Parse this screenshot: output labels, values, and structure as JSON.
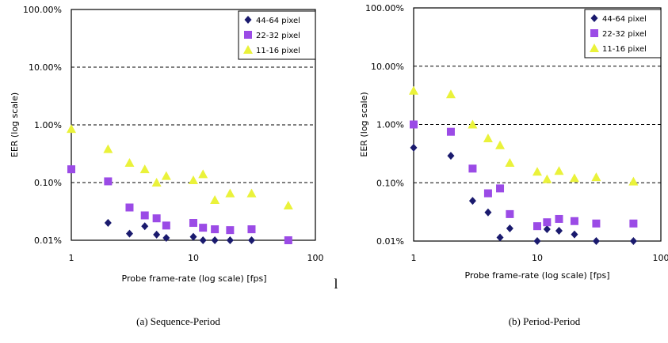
{
  "chart_data": [
    {
      "type": "scatter",
      "caption": "(a) Sequence-Period",
      "xlabel": "Probe frame-rate (log scale) [fps]",
      "ylabel": "EER (log scale)",
      "xscale": "log",
      "yscale": "log",
      "xlim": [
        1,
        100
      ],
      "ylim": [
        0.01,
        100
      ],
      "x_tick_labels": [
        "1",
        "10",
        "100"
      ],
      "y_tick_labels": [
        "0.01%",
        "0.10%",
        "1.00%",
        "10.00%",
        "100.00%"
      ],
      "grid": "horizontal dashed at 0.1, 1, 10",
      "legend_position": "top-right",
      "series": [
        {
          "name": "44-64 pixel",
          "marker": "diamond",
          "color": "#1a1a6e",
          "points": [
            [
              2,
              0.02
            ],
            [
              3,
              0.013
            ],
            [
              4,
              0.0175
            ],
            [
              5,
              0.0125
            ],
            [
              6,
              0.011
            ],
            [
              10,
              0.0115
            ],
            [
              12,
              0.01
            ],
            [
              15,
              0.01
            ],
            [
              20,
              0.01
            ],
            [
              30,
              0.01
            ]
          ]
        },
        {
          "name": "22-32 pixel",
          "marker": "square",
          "color": "#9b4be6",
          "points": [
            [
              1,
              0.17
            ],
            [
              2,
              0.105
            ],
            [
              3,
              0.037
            ],
            [
              4,
              0.027
            ],
            [
              5,
              0.024
            ],
            [
              6,
              0.018
            ],
            [
              10,
              0.02
            ],
            [
              12,
              0.0165
            ],
            [
              15,
              0.0155
            ],
            [
              20,
              0.015
            ],
            [
              30,
              0.0155
            ],
            [
              60,
              0.01
            ]
          ]
        },
        {
          "name": "11-16 pixel",
          "marker": "triangle",
          "color": "#eaf23a",
          "points": [
            [
              1,
              0.85
            ],
            [
              2,
              0.38
            ],
            [
              3,
              0.22
            ],
            [
              4,
              0.17
            ],
            [
              5,
              0.1
            ],
            [
              6,
              0.13
            ],
            [
              10,
              0.11
            ],
            [
              12,
              0.14
            ],
            [
              15,
              0.05
            ],
            [
              20,
              0.065
            ],
            [
              30,
              0.065
            ],
            [
              60,
              0.04
            ]
          ]
        }
      ]
    },
    {
      "type": "scatter",
      "caption": "(b) Period-Period",
      "xlabel": "Probe frame-rate (log scale) [fps]",
      "ylabel": "EER (log scale)",
      "xscale": "log",
      "yscale": "log",
      "xlim": [
        1,
        100
      ],
      "ylim": [
        0.01,
        100
      ],
      "x_tick_labels": [
        "1",
        "10",
        "100"
      ],
      "y_tick_labels": [
        "0.01%",
        "0.10%",
        "1.00%",
        "10.00%",
        "100.00%"
      ],
      "grid": "horizontal dashed at 0.1, 1, 10",
      "legend_position": "top-right",
      "series": [
        {
          "name": "44-64 pixel",
          "marker": "diamond",
          "color": "#1a1a6e",
          "points": [
            [
              1,
              0.4
            ],
            [
              2,
              0.29
            ],
            [
              3,
              0.049
            ],
            [
              4,
              0.031
            ],
            [
              5,
              0.0115
            ],
            [
              6,
              0.0165
            ],
            [
              10,
              0.01
            ],
            [
              12,
              0.016
            ],
            [
              15,
              0.015
            ],
            [
              20,
              0.013
            ],
            [
              30,
              0.01
            ],
            [
              60,
              0.01
            ]
          ]
        },
        {
          "name": "22-32 pixel",
          "marker": "square",
          "color": "#9b4be6",
          "points": [
            [
              1,
              1.0
            ],
            [
              2,
              0.75
            ],
            [
              3,
              0.175
            ],
            [
              4,
              0.066
            ],
            [
              5,
              0.08
            ],
            [
              6,
              0.029
            ],
            [
              10,
              0.018
            ],
            [
              12,
              0.021
            ],
            [
              15,
              0.024
            ],
            [
              20,
              0.022
            ],
            [
              30,
              0.02
            ],
            [
              60,
              0.02
            ]
          ]
        },
        {
          "name": "11-16 pixel",
          "marker": "triangle",
          "color": "#eaf23a",
          "points": [
            [
              1,
              3.8
            ],
            [
              2,
              3.3
            ],
            [
              3,
              1.0
            ],
            [
              4,
              0.58
            ],
            [
              5,
              0.44
            ],
            [
              6,
              0.22
            ],
            [
              10,
              0.155
            ],
            [
              12,
              0.115
            ],
            [
              15,
              0.16
            ],
            [
              20,
              0.12
            ],
            [
              30,
              0.125
            ],
            [
              60,
              0.105
            ]
          ]
        }
      ]
    }
  ],
  "stray_text": "l"
}
